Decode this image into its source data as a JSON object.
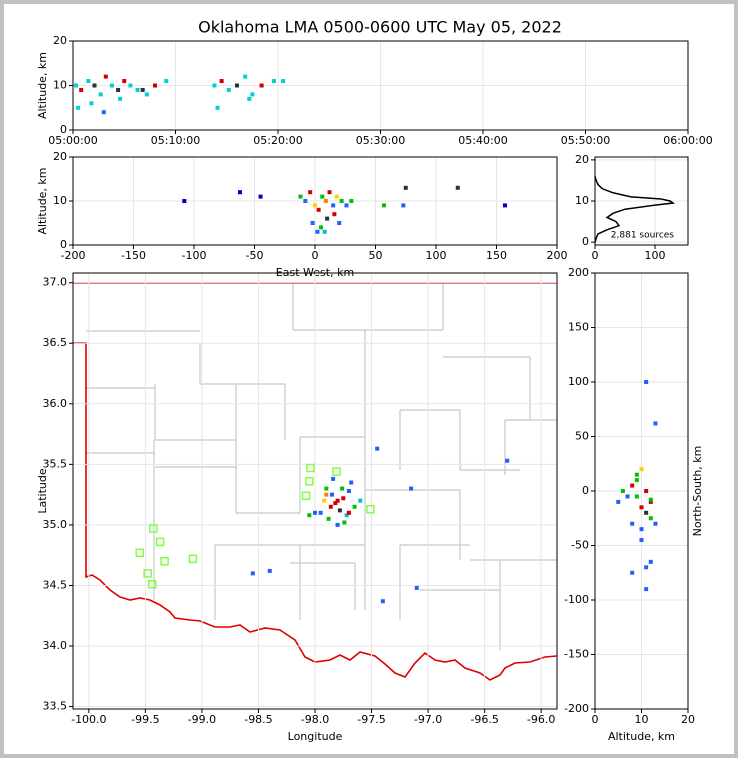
{
  "chart_data": [
    {
      "type": "scatter",
      "title": "Oklahoma LMA 0500-0600 UTC May 05, 2022",
      "ylabel": "Altitude, km",
      "xlim": [
        0,
        60
      ],
      "ylim": [
        0,
        20
      ],
      "grid": true,
      "xticks": [
        {
          "value": 0,
          "label": "05:00:00"
        },
        {
          "value": 10,
          "label": "05:10:00"
        },
        {
          "value": 20,
          "label": "05:20:00"
        },
        {
          "value": 30,
          "label": "05:30:00"
        },
        {
          "value": 40,
          "label": "05:40:00"
        },
        {
          "value": 50,
          "label": "05:50:00"
        },
        {
          "value": 60,
          "label": "06:00:00"
        }
      ],
      "yticks": [
        0,
        10,
        20
      ],
      "x": [
        0.3,
        0.8,
        1.5,
        2.1,
        2.7,
        3.2,
        3.8,
        4.4,
        5.0,
        5.6,
        6.3,
        7.2,
        8.0,
        9.1,
        0.5,
        1.8,
        3.0,
        4.6,
        6.8,
        13.8,
        14.5,
        15.2,
        16.0,
        16.8,
        17.5,
        18.4,
        19.6,
        20.5,
        14.1,
        17.2
      ],
      "y": [
        10,
        9,
        11,
        10,
        8,
        12,
        10,
        9,
        11,
        10,
        9,
        8,
        10,
        11,
        5,
        6,
        4,
        7,
        9,
        10,
        11,
        9,
        10,
        12,
        8,
        10,
        11,
        11,
        5,
        7
      ],
      "colors": [
        "#00d0d0",
        "#d00000",
        "#00d0d0",
        "#303030",
        "#00d0d0",
        "#d00000",
        "#00d0d0",
        "#303030",
        "#d00000",
        "#00d0d0",
        "#00d0d0",
        "#00d0d0",
        "#d00000",
        "#00d0d0",
        "#00d0d0",
        "#00d0d0",
        "#2060ff",
        "#00d0d0",
        "#303030",
        "#00d0d0",
        "#d00000",
        "#00d0d0",
        "#303030",
        "#00d0d0",
        "#00d0d0",
        "#d00000",
        "#00d0d0",
        "#00d0d0",
        "#00d0d0",
        "#00d0d0"
      ]
    },
    {
      "type": "scatter",
      "xlabel": "East-West, km",
      "ylabel": "Altitude, km",
      "xlim": [
        -200,
        200
      ],
      "ylim": [
        0,
        20
      ],
      "grid": true,
      "xticks": [
        -200,
        -150,
        -100,
        -50,
        0,
        50,
        100,
        150,
        200
      ],
      "yticks": [
        0,
        10,
        20
      ],
      "x": [
        -12,
        -8,
        -4,
        0,
        3,
        6,
        9,
        12,
        15,
        18,
        22,
        26,
        30,
        -2,
        5,
        10,
        16,
        20,
        2,
        8,
        -108,
        -62,
        -45,
        57,
        75,
        118,
        157,
        73
      ],
      "y": [
        11,
        10,
        12,
        9,
        8,
        11,
        10,
        12,
        9,
        11,
        10,
        9,
        10,
        5,
        4,
        6,
        7,
        5,
        3,
        3,
        10,
        12,
        11,
        9,
        13,
        13,
        9,
        9
      ],
      "colors": [
        "#00c000",
        "#2060ff",
        "#d00000",
        "#ffd000",
        "#d00000",
        "#00c000",
        "#ff8000",
        "#d00000",
        "#2060ff",
        "#ffd000",
        "#00c000",
        "#2060ff",
        "#00c000",
        "#2060ff",
        "#00c000",
        "#303030",
        "#d00000",
        "#2060ff",
        "#2060ff",
        "#00c0c0",
        "#0000c0",
        "#0000c0",
        "#0000c0",
        "#00c000",
        "#303030",
        "#303030",
        "#0000c0",
        "#2060ff"
      ]
    },
    {
      "type": "line",
      "annotation": "2,881 sources",
      "color": "#000000",
      "xlim": [
        0,
        155
      ],
      "ylim": [
        -0.7,
        20.7
      ],
      "grid": true,
      "xticks": [
        0,
        100
      ],
      "yticks": [
        0,
        10,
        20
      ],
      "x": [
        0,
        2,
        5,
        20,
        40,
        35,
        20,
        30,
        50,
        100,
        130,
        125,
        110,
        60,
        30,
        12,
        5,
        2,
        0
      ],
      "y": [
        0,
        1,
        2,
        3,
        4,
        5,
        6,
        7,
        8,
        9,
        9.5,
        10,
        10.5,
        11,
        12,
        13,
        14,
        15,
        16
      ]
    },
    {
      "type": "scatter",
      "xlabel": "Longitude",
      "ylabel": "Latitude",
      "xlim": [
        -100.14,
        -95.86
      ],
      "ylim": [
        33.48,
        37.08
      ],
      "grid": true,
      "xticks": [
        {
          "value": -100,
          "label": "-100.0"
        },
        -99.5,
        {
          "value": -99,
          "label": "-99.0"
        },
        -98.5,
        {
          "value": -98,
          "label": "-98.0"
        },
        -97.5,
        {
          "value": -97,
          "label": "-97.0"
        },
        -96.5,
        {
          "value": -96,
          "label": "-96.0"
        }
      ],
      "yticks": [
        {
          "value": 37,
          "label": "37.0"
        },
        36.5,
        {
          "value": 36,
          "label": "36.0"
        },
        35.5,
        {
          "value": 35,
          "label": "35.0"
        },
        34.5,
        {
          "value": 34,
          "label": "34.0"
        },
        33.5
      ],
      "x": [
        -97.9,
        -97.85,
        -97.8,
        -97.75,
        -97.7,
        -97.65,
        -97.95,
        -97.88,
        -97.82,
        -97.78,
        -97.72,
        -97.68,
        -97.92,
        -97.86,
        -97.8,
        -97.74,
        -98.0,
        -97.84,
        -97.76,
        -97.9,
        -97.45,
        -96.3,
        -97.15,
        -98.4,
        -97.1,
        -97.4,
        -98.55,
        -97.6,
        -97.7,
        -98.05
      ],
      "y": [
        35.3,
        35.25,
        35.2,
        35.22,
        35.28,
        35.15,
        35.1,
        35.05,
        35.18,
        35.12,
        35.08,
        35.35,
        35.2,
        35.15,
        35.0,
        35.02,
        35.1,
        35.38,
        35.3,
        35.25,
        35.63,
        35.53,
        35.3,
        34.62,
        34.48,
        34.37,
        34.6,
        35.2,
        35.1,
        35.08
      ],
      "colors": [
        "#00c000",
        "#2060ff",
        "#d00000",
        "#d00000",
        "#2060ff",
        "#00c000",
        "#2060ff",
        "#00c000",
        "#d00000",
        "#303030",
        "#00c0c0",
        "#2060ff",
        "#ffd000",
        "#d00000",
        "#2060ff",
        "#00c000",
        "#2060ff",
        "#2060ff",
        "#00c000",
        "#ff8000",
        "#2060ff",
        "#2060ff",
        "#2060ff",
        "#2060ff",
        "#2060ff",
        "#2060ff",
        "#2060ff",
        "#00c0c0",
        "#d00000",
        "#00c000"
      ],
      "stations": {
        "color": "#80ff40",
        "x": [
          -98.04,
          -97.81,
          -98.05,
          -98.08,
          -97.51,
          -99.43,
          -99.37,
          -99.55,
          -99.33,
          -99.08,
          -99.48,
          -99.44
        ],
        "y": [
          35.47,
          35.44,
          35.36,
          35.24,
          35.13,
          34.97,
          34.86,
          34.77,
          34.7,
          34.72,
          34.6,
          34.51
        ]
      }
    },
    {
      "type": "scatter",
      "xlabel": "Altitude, km",
      "ylabel": "North-South, km",
      "ylabel_position": "right",
      "xlim": [
        0,
        20
      ],
      "ylim": [
        -200,
        200
      ],
      "grid": true,
      "xticks": [
        0,
        10,
        20
      ],
      "yticks": [
        -200,
        -150,
        -100,
        -50,
        0,
        50,
        100,
        150,
        200
      ],
      "x": [
        5,
        6,
        7,
        8,
        9,
        10,
        11,
        12,
        13,
        9,
        10,
        11,
        8,
        12,
        10,
        9,
        11,
        13,
        11,
        8,
        11,
        12,
        12,
        10
      ],
      "y": [
        -10,
        0,
        -5,
        5,
        10,
        -15,
        -20,
        -25,
        -30,
        15,
        20,
        0,
        -30,
        -10,
        -35,
        -5,
        100,
        62,
        -70,
        -75,
        -90,
        -65,
        -8,
        -45
      ],
      "colors": [
        "#2060ff",
        "#00c000",
        "#2060ff",
        "#d00000",
        "#00c000",
        "#d00000",
        "#303030",
        "#00c000",
        "#2060ff",
        "#00c000",
        "#ffd000",
        "#d00000",
        "#2060ff",
        "#d00000",
        "#2060ff",
        "#00c000",
        "#2060ff",
        "#2060ff",
        "#2060ff",
        "#2060ff",
        "#2060ff",
        "#2060ff",
        "#00c000",
        "#2060ff"
      ]
    }
  ]
}
